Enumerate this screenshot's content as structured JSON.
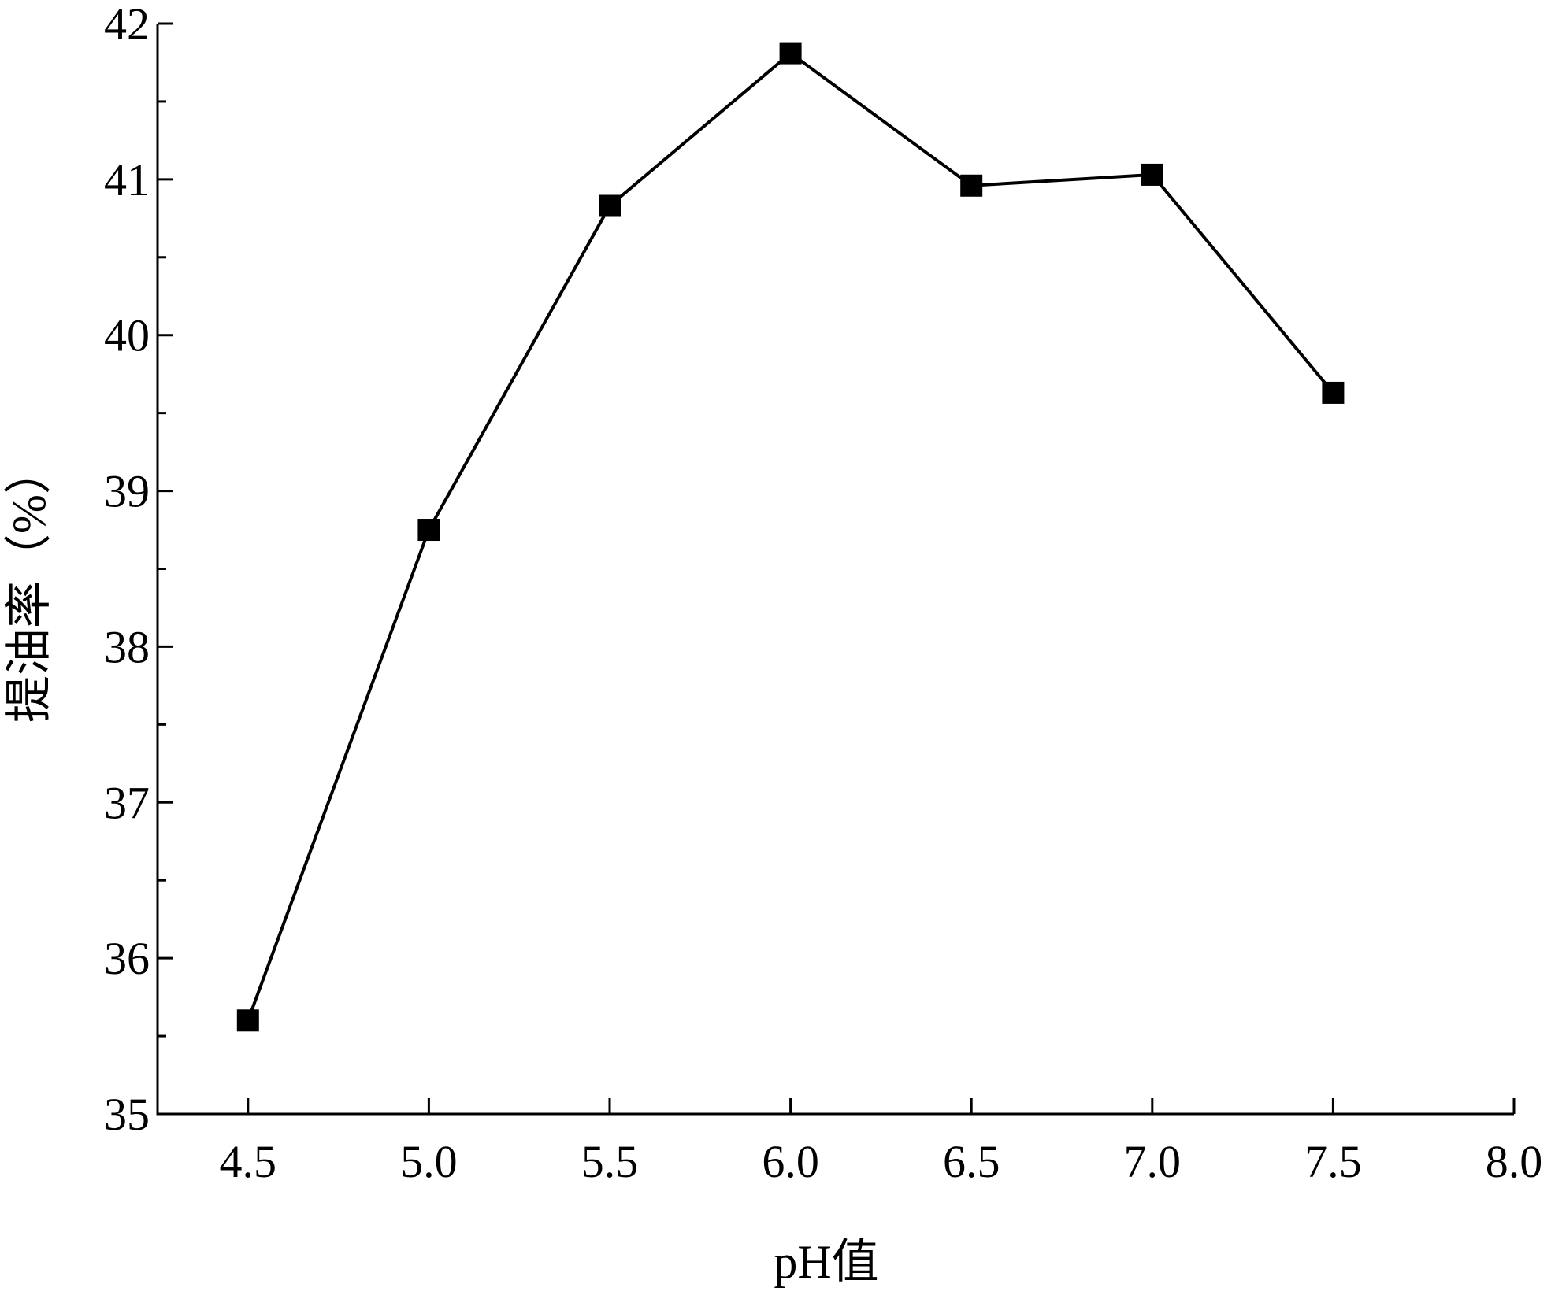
{
  "chart_data": {
    "type": "line",
    "title": "",
    "xlabel": "pH值",
    "ylabel": "提油率（%）",
    "xlim": [
      4.25,
      8.0
    ],
    "ylim": [
      35,
      42
    ],
    "x_ticks": [
      "4.5",
      "5.0",
      "5.5",
      "6.0",
      "6.5",
      "7.0",
      "7.5",
      "8.0"
    ],
    "y_ticks": [
      "35",
      "36",
      "37",
      "38",
      "39",
      "40",
      "41",
      "42"
    ],
    "x_tick_values": [
      4.5,
      5.0,
      5.5,
      6.0,
      6.5,
      7.0,
      7.5,
      8.0
    ],
    "y_tick_values": [
      35,
      36,
      37,
      38,
      39,
      40,
      41,
      42
    ],
    "y_minor_step": 0.5,
    "grid": false,
    "legend": "none",
    "marker": "square",
    "line_color": "#000000",
    "marker_color": "#000000",
    "series": [
      {
        "x": [
          4.5,
          5.0,
          5.5,
          6.0,
          6.5,
          7.0,
          7.5
        ],
        "values": [
          35.6,
          38.75,
          40.83,
          41.81,
          40.96,
          41.03,
          39.63
        ]
      }
    ]
  }
}
